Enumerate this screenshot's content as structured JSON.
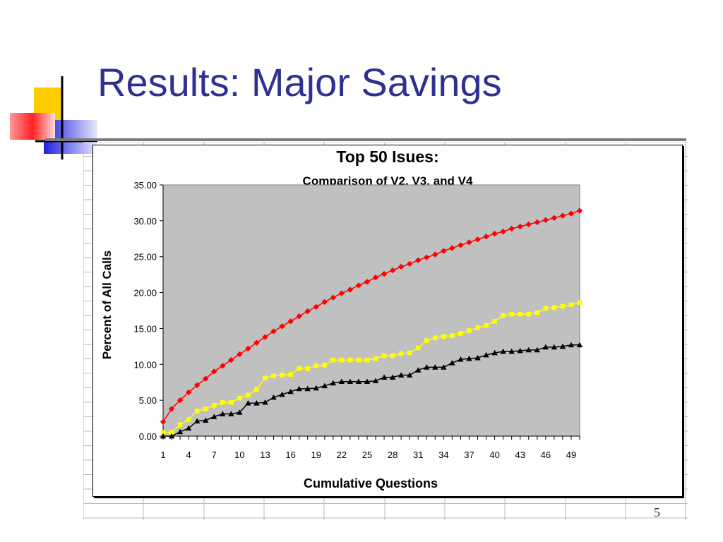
{
  "slide": {
    "title": "Results:  Major Savings",
    "page_number": "5"
  },
  "chart_data": {
    "type": "line",
    "title": "Top 50 Isues:",
    "subtitle": "Comparison of V2, V3, and V4",
    "xlabel": "Cumulative Questions",
    "ylabel": "Percent of All Calls",
    "ylim": [
      0,
      35
    ],
    "y_ticks": [
      "0.00",
      "5.00",
      "10.00",
      "15.00",
      "20.00",
      "25.00",
      "30.00",
      "35.00"
    ],
    "x_tick_labels": [
      "1",
      "4",
      "7",
      "10",
      "13",
      "16",
      "19",
      "22",
      "25",
      "28",
      "31",
      "34",
      "37",
      "40",
      "43",
      "46",
      "49"
    ],
    "x": [
      1,
      2,
      3,
      4,
      5,
      6,
      7,
      8,
      9,
      10,
      11,
      12,
      13,
      14,
      15,
      16,
      17,
      18,
      19,
      20,
      21,
      22,
      23,
      24,
      25,
      26,
      27,
      28,
      29,
      30,
      31,
      32,
      33,
      34,
      35,
      36,
      37,
      38,
      39,
      40,
      41,
      42,
      43,
      44,
      45,
      46,
      47,
      48,
      49,
      50
    ],
    "plot_background": "#c0c0c0",
    "grid": false,
    "legend": "none",
    "series": [
      {
        "color": "#ff0000",
        "marker": "diamond",
        "values": [
          2.0,
          3.8,
          5.0,
          6.1,
          7.1,
          8.0,
          9.0,
          9.8,
          10.6,
          11.4,
          12.2,
          13.0,
          13.8,
          14.6,
          15.3,
          16.0,
          16.7,
          17.4,
          18.0,
          18.7,
          19.3,
          19.9,
          20.4,
          21.0,
          21.5,
          22.1,
          22.6,
          23.1,
          23.6,
          24.0,
          24.5,
          24.9,
          25.3,
          25.8,
          26.2,
          26.6,
          27.0,
          27.4,
          27.8,
          28.2,
          28.5,
          28.9,
          29.2,
          29.5,
          29.8,
          30.1,
          30.4,
          30.7,
          31.0,
          31.4
        ]
      },
      {
        "color": "#ffff00",
        "marker": "square",
        "values": [
          0.5,
          0.5,
          1.6,
          2.3,
          3.5,
          3.8,
          4.3,
          4.7,
          4.7,
          5.3,
          5.7,
          6.5,
          8.1,
          8.4,
          8.5,
          8.6,
          9.4,
          9.4,
          9.8,
          9.9,
          10.6,
          10.6,
          10.6,
          10.6,
          10.6,
          10.8,
          11.2,
          11.2,
          11.5,
          11.6,
          12.3,
          13.3,
          13.7,
          13.9,
          14.0,
          14.3,
          14.7,
          15.1,
          15.4,
          16.0,
          16.8,
          17.0,
          17.0,
          17.0,
          17.2,
          17.8,
          17.9,
          18.1,
          18.3,
          18.6
        ]
      },
      {
        "color": "#000000",
        "marker": "triangle",
        "values": [
          0.0,
          0.0,
          0.6,
          1.1,
          2.1,
          2.2,
          2.7,
          3.1,
          3.1,
          3.3,
          4.6,
          4.6,
          4.7,
          5.4,
          5.8,
          6.2,
          6.6,
          6.6,
          6.7,
          7.0,
          7.4,
          7.6,
          7.6,
          7.6,
          7.6,
          7.7,
          8.2,
          8.2,
          8.5,
          8.5,
          9.2,
          9.6,
          9.6,
          9.6,
          10.2,
          10.7,
          10.8,
          10.9,
          11.3,
          11.6,
          11.8,
          11.8,
          11.9,
          12.0,
          12.0,
          12.4,
          12.4,
          12.5,
          12.7,
          12.7
        ]
      }
    ]
  }
}
